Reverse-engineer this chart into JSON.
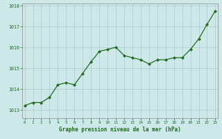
{
  "x": [
    0,
    1,
    2,
    3,
    4,
    5,
    6,
    7,
    8,
    9,
    10,
    11,
    12,
    13,
    14,
    15,
    16,
    17,
    18,
    19,
    20,
    21,
    22,
    23
  ],
  "y": [
    1013.2,
    1013.35,
    1013.35,
    1013.6,
    1014.2,
    1014.3,
    1014.2,
    1014.75,
    1015.3,
    1015.8,
    1015.9,
    1016.0,
    1015.6,
    1015.5,
    1015.4,
    1015.2,
    1015.4,
    1015.4,
    1015.5,
    1015.5,
    1015.9,
    1016.4,
    1017.1,
    1017.75
  ],
  "line_color": "#1f6b1f",
  "marker_color": "#1f6b1f",
  "bg_color": "#cce8e8",
  "grid_color": "#b0c8c8",
  "xlabel": "Graphe pression niveau de la mer (hPa)",
  "xlabel_color": "#1f6b1f",
  "tick_color": "#1f6b1f",
  "ylim": [
    1012.6,
    1018.1
  ],
  "yticks": [
    1013,
    1014,
    1015,
    1016,
    1017,
    1018
  ],
  "xlim": [
    -0.3,
    23.3
  ],
  "xticks": [
    0,
    1,
    2,
    3,
    4,
    5,
    6,
    7,
    8,
    9,
    10,
    11,
    12,
    13,
    14,
    15,
    16,
    17,
    18,
    19,
    20,
    21,
    22,
    23
  ]
}
